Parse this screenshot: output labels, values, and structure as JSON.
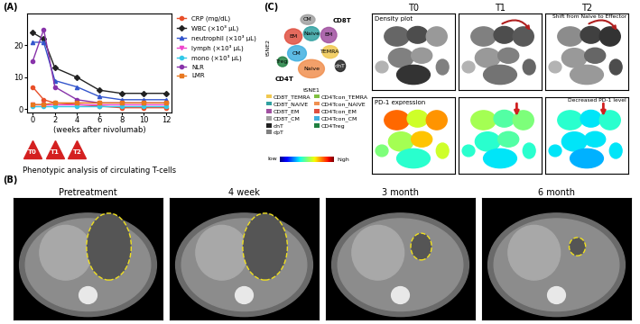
{
  "chart_data": {
    "type": "line",
    "title": "(A)",
    "xlabel": "(weeks after nivolumab)",
    "x": [
      0,
      1,
      2,
      4,
      6,
      8,
      10,
      12
    ],
    "xlim": [
      -0.5,
      12.5
    ],
    "xticks": [
      0,
      2,
      4,
      6,
      8,
      10,
      12
    ],
    "ylim": [
      -1,
      30
    ],
    "yticks": [
      0,
      10,
      20
    ],
    "legend": "right",
    "series": [
      {
        "name": "CRP (mg/dL)",
        "color": "#e8502a",
        "marker": "o",
        "line_style": "solid",
        "values": [
          7,
          3,
          2,
          1.5,
          1,
          0.5,
          0.5,
          0.5
        ]
      },
      {
        "name": "WBC (×10³ μL)",
        "color": "#222222",
        "marker": "D",
        "line_style": "solid",
        "values": [
          24,
          22,
          13,
          10,
          6,
          5,
          5,
          5
        ]
      },
      {
        "name": "neutrophil (×10³ μL)",
        "color": "#3355cc",
        "marker": "^",
        "line_style": "solid",
        "values": [
          21,
          21,
          9,
          7,
          4,
          3,
          3,
          3
        ]
      },
      {
        "name": "lymph (×10³ μL)",
        "color": "#ee44cc",
        "marker": "v",
        "line_style": "solid",
        "values": [
          1.5,
          1.5,
          1.5,
          1.5,
          1.5,
          1.5,
          1.5,
          1.5
        ]
      },
      {
        "name": "mono (×10³ μL)",
        "color": "#33c8e8",
        "marker": "o",
        "line_style": "solid",
        "values": [
          1,
          1,
          1,
          1,
          1,
          1,
          1,
          1
        ]
      },
      {
        "name": "NLR",
        "color": "#8833aa",
        "marker": "o",
        "line_style": "solid",
        "values": [
          15,
          25,
          7,
          3,
          2,
          2,
          2,
          2
        ]
      },
      {
        "name": "LMR",
        "color": "#e87820",
        "marker": "s",
        "line_style": "solid",
        "values": [
          1.5,
          1.5,
          2,
          2,
          2,
          2,
          2,
          2
        ]
      }
    ],
    "annotations": {
      "timepoints": [
        {
          "x": 0,
          "label": "T0"
        },
        {
          "x": 2,
          "label": "T1"
        },
        {
          "x": 4,
          "label": "T2"
        }
      ],
      "text": "Phenotypic analysis of circulating T-cells"
    }
  },
  "panel_B": {
    "label": "(B)",
    "images": [
      "Pretreatment",
      "4 week",
      "3 month",
      "6 month"
    ]
  },
  "panel_C": {
    "label": "(C)",
    "axis_labels": [
      "tSNE1",
      "tSNE2"
    ],
    "clusters": [
      {
        "label": "CM",
        "color": "#a0a0a0"
      },
      {
        "label": "EM",
        "color": "#e05040"
      },
      {
        "label": "Naive",
        "color": "#30a0a0"
      },
      {
        "label": "EM",
        "color": "#a050a0"
      },
      {
        "label": "TEMRA",
        "color": "#f0c850"
      },
      {
        "label": "CM",
        "color": "#40b0e0"
      },
      {
        "label": "Naive",
        "color": "#f09050"
      },
      {
        "label": "Treg",
        "color": "#208040"
      },
      {
        "label": "dnT",
        "color": "#202020"
      }
    ],
    "group_labels": [
      "CD8T",
      "CD4T"
    ],
    "timepoints": [
      "T0",
      "T1",
      "T2"
    ],
    "rows": [
      "Density plot",
      "PD-1 expression"
    ],
    "notes": [
      "Shift from Naive to Effector",
      "Decreased PD-1 level"
    ],
    "legend": [
      {
        "name": "CD8T_TEMRA",
        "color": "#f0c850"
      },
      {
        "name": "CD8T_NAIVE",
        "color": "#30a0a0"
      },
      {
        "name": "CD8T_EM",
        "color": "#a050a0"
      },
      {
        "name": "CD8T_CM",
        "color": "#a0a0a0"
      },
      {
        "name": "dnT",
        "color": "#202020"
      },
      {
        "name": "dpT",
        "color": "#808080"
      },
      {
        "name": "CD4Tcon_TEMRA",
        "color": "#80c040"
      },
      {
        "name": "CD4Tcon_NAIVE",
        "color": "#f09050"
      },
      {
        "name": "CD4Tcon_EM",
        "color": "#e05040"
      },
      {
        "name": "CD4Tcon_CM",
        "color": "#40b0e0"
      },
      {
        "name": "CD4Treg",
        "color": "#208040"
      }
    ],
    "colorbar": [
      "low",
      "high"
    ]
  }
}
